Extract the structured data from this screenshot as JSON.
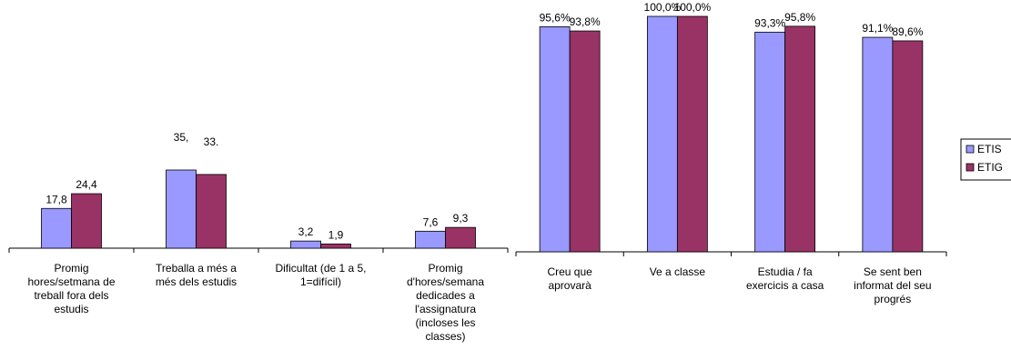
{
  "chart_data": [
    {
      "type": "bar",
      "categories": [
        "Promig hores/setmana de treball fora dels estudis",
        "Treballa a més a més dels estudis",
        "Dificultat (de 1 a 5, 1=difícil)",
        "Promig d'hores/semana dedicades a l'assignatura (incloses les classes)"
      ],
      "series": [
        {
          "color": "#9999ff",
          "values": [
            17.8,
            35,
            3.2,
            7.6
          ],
          "value_labels": [
            "17,8",
            "35,",
            "3,2",
            "7,6"
          ]
        },
        {
          "color": "#993366",
          "values": [
            24.4,
            33,
            1.9,
            9.3
          ],
          "value_labels": [
            "24,4",
            "33.",
            "1,9",
            "9,3"
          ]
        }
      ]
    },
    {
      "type": "bar",
      "categories": [
        "Creu que aprovarà",
        "Ve a classe",
        "Estudia / fa exercicis a casa",
        "Se sent ben informat del seu progrés"
      ],
      "series": [
        {
          "name": "ETIS",
          "color": "#9999ff",
          "values": [
            95.6,
            100,
            93.3,
            91.1
          ],
          "value_labels": [
            "95,6%",
            "100,0%",
            "93,3%",
            "91,1%"
          ]
        },
        {
          "name": "ETIG",
          "color": "#993366",
          "values": [
            93.8,
            100,
            95.8,
            89.6
          ],
          "value_labels": [
            "93,8%",
            "100,0%",
            "95,8%",
            "89,6%"
          ]
        }
      ],
      "legend": "right"
    }
  ]
}
